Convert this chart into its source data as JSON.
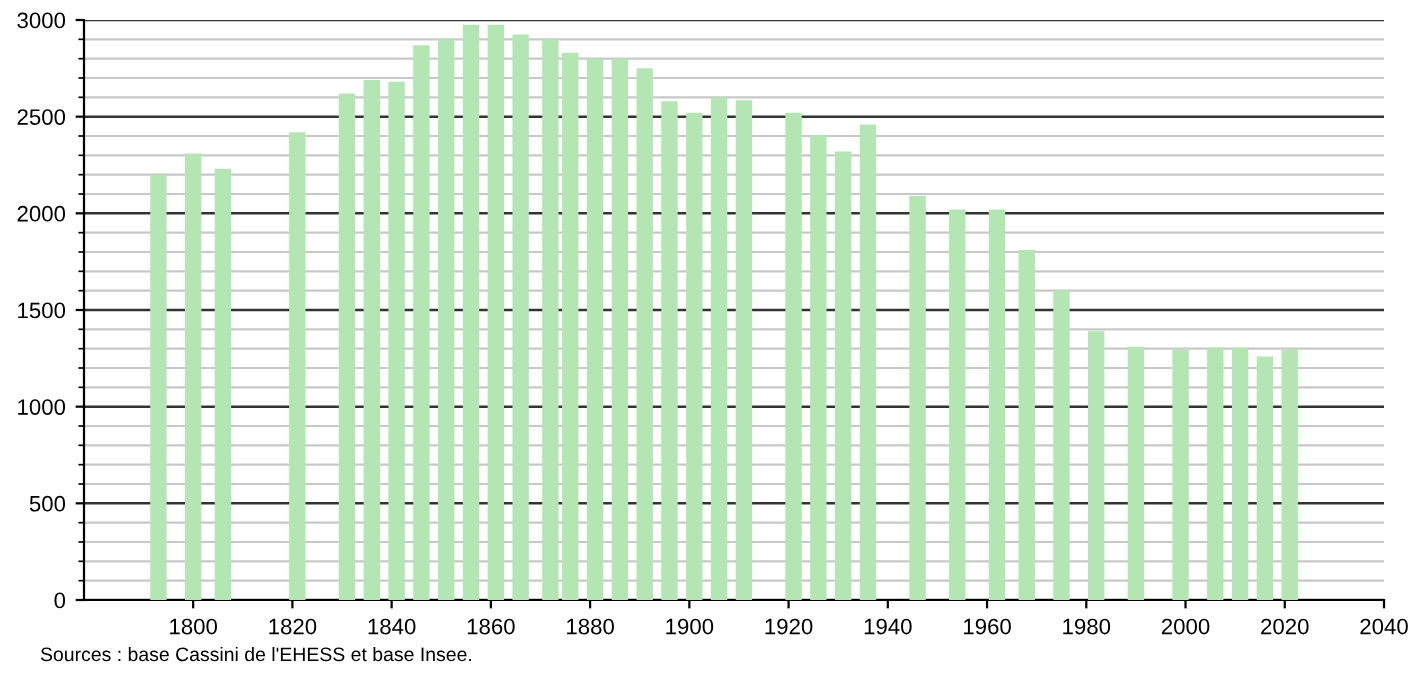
{
  "chart_data": {
    "type": "bar",
    "x": [
      1793,
      1800,
      1806,
      1821,
      1831,
      1836,
      1841,
      1846,
      1851,
      1856,
      1861,
      1866,
      1872,
      1876,
      1881,
      1886,
      1891,
      1896,
      1901,
      1906,
      1911,
      1921,
      1926,
      1931,
      1936,
      1946,
      1954,
      1962,
      1968,
      1975,
      1982,
      1990,
      1999,
      2006,
      2011,
      2016,
      2021
    ],
    "values": [
      2200,
      2310,
      2230,
      2420,
      2620,
      2690,
      2680,
      2870,
      2900,
      2975,
      2975,
      2925,
      2900,
      2830,
      2800,
      2800,
      2750,
      2580,
      2520,
      2600,
      2585,
      2520,
      2405,
      2320,
      2460,
      2090,
      2020,
      2020,
      1810,
      1600,
      1390,
      1310,
      1295,
      1305,
      1305,
      1260,
      1295
    ],
    "color": "#b3e6b3",
    "xlim": [
      1778,
      2040
    ],
    "xticks": [
      1800,
      1820,
      1840,
      1860,
      1880,
      1900,
      1920,
      1940,
      1960,
      1980,
      2000,
      2020,
      2040
    ],
    "ylim": [
      0,
      3000
    ],
    "yticks": [
      0,
      500,
      1000,
      1500,
      2000,
      2500,
      3000
    ],
    "grid": "y",
    "annotations": [
      "Sources : base Cassini de l'EHESS et base Insee."
    ]
  }
}
